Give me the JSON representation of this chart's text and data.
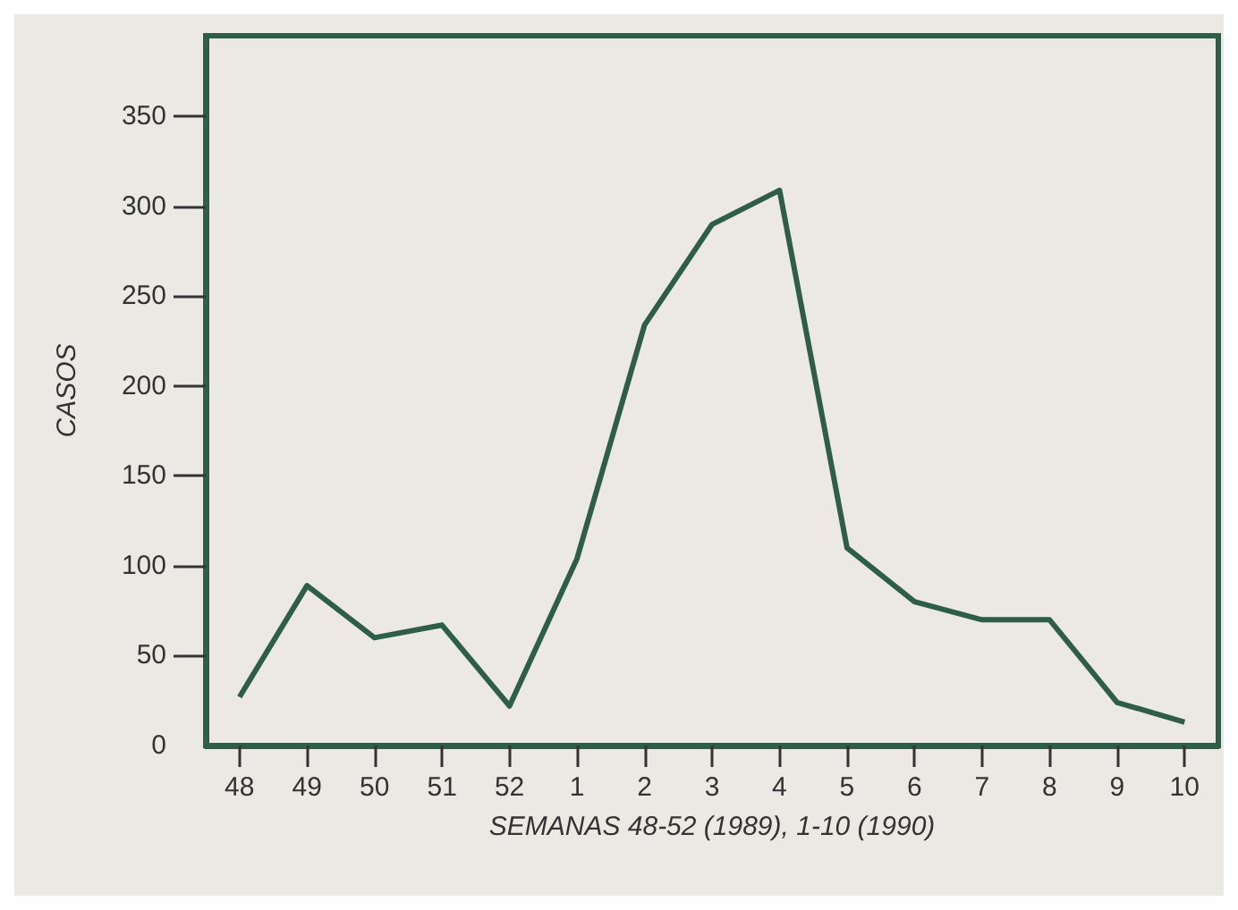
{
  "chart_data": {
    "type": "line",
    "xlabel": "SEMANAS 48-52 (1989), 1-10 (1990)",
    "ylabel": "CASOS",
    "categories": [
      "48",
      "49",
      "50",
      "51",
      "52",
      "1",
      "2",
      "3",
      "4",
      "5",
      "6",
      "7",
      "8",
      "9",
      "10"
    ],
    "series": [
      {
        "color": "#2e5e48",
        "values": [
          27,
          89,
          60,
          67,
          22,
          104,
          234,
          290,
          309,
          110,
          80,
          70,
          70,
          24,
          13
        ]
      }
    ],
    "ylim": [
      0,
      395
    ],
    "yticks": [
      0,
      50,
      100,
      150,
      200,
      250,
      300,
      350
    ],
    "grid": false,
    "marker": "none",
    "line_style": "solid"
  }
}
